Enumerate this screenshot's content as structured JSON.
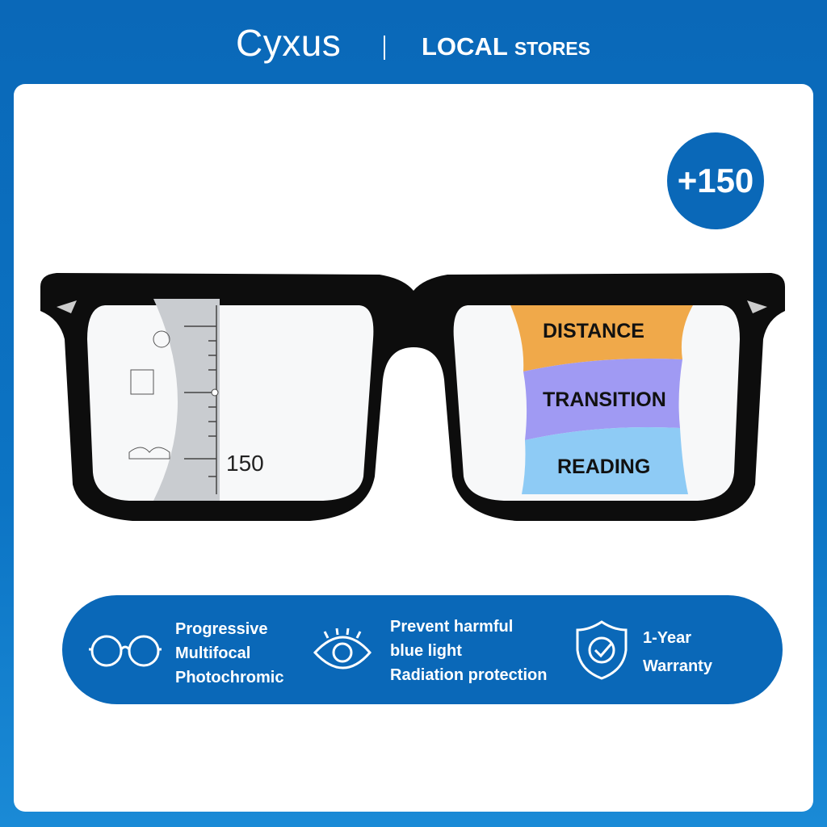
{
  "header": {
    "brand": "Cyxus",
    "store_main": "LOCAL",
    "store_sub": "STORES"
  },
  "badge": {
    "power": "+150"
  },
  "lens_left": {
    "scale_label": "150"
  },
  "lens_right": {
    "zones": [
      {
        "label": "DISTANCE",
        "color": "#f0a94a"
      },
      {
        "label": "TRANSITION",
        "color": "#a09af3"
      },
      {
        "label": "READING",
        "color": "#8ecbf5"
      }
    ]
  },
  "features": [
    {
      "icon": "glasses-icon",
      "lines": [
        "Progressive",
        "Multifocal",
        "Photochromic"
      ]
    },
    {
      "icon": "eye-icon",
      "lines": [
        "Prevent harmful",
        "blue light",
        "Radiation protection"
      ]
    },
    {
      "icon": "shield-check-icon",
      "lines": [
        "1-Year",
        "Warranty"
      ]
    }
  ],
  "colors": {
    "brand_blue": "#0a68b8",
    "card": "#ffffff"
  }
}
